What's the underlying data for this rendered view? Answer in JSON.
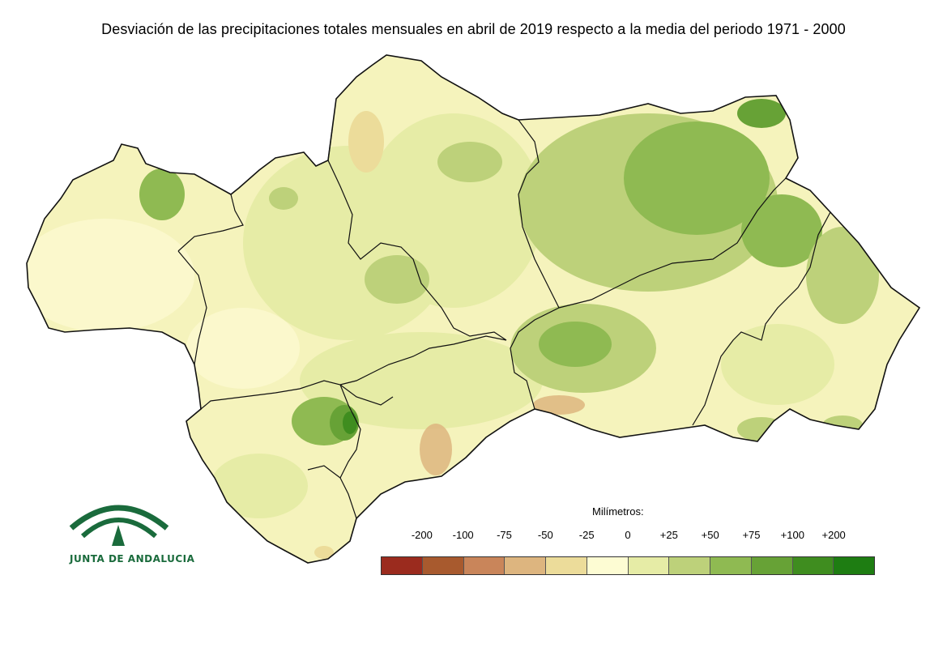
{
  "title": "Desviación de las precipitaciones totales mensuales en abril de 2019 respecto a la media del periodo 1971 - 2000",
  "legend": {
    "title": "Milímetros:",
    "ticks": [
      "-200",
      "-100",
      "-75",
      "-50",
      "-25",
      "0",
      "+25",
      "+50",
      "+75",
      "+100",
      "+200"
    ],
    "colors": [
      "#9b2b1e",
      "#a85a2e",
      "#c9855a",
      "#ddb57f",
      "#ecdc9a",
      "#fdfcd3",
      "#e6eca6",
      "#bdd17a",
      "#8fba52",
      "#67a236",
      "#3f8d1f",
      "#1e7d12"
    ]
  },
  "logo": {
    "text": "JUNTA DE ANDALUCIA",
    "color": "#1a6b3c"
  }
}
